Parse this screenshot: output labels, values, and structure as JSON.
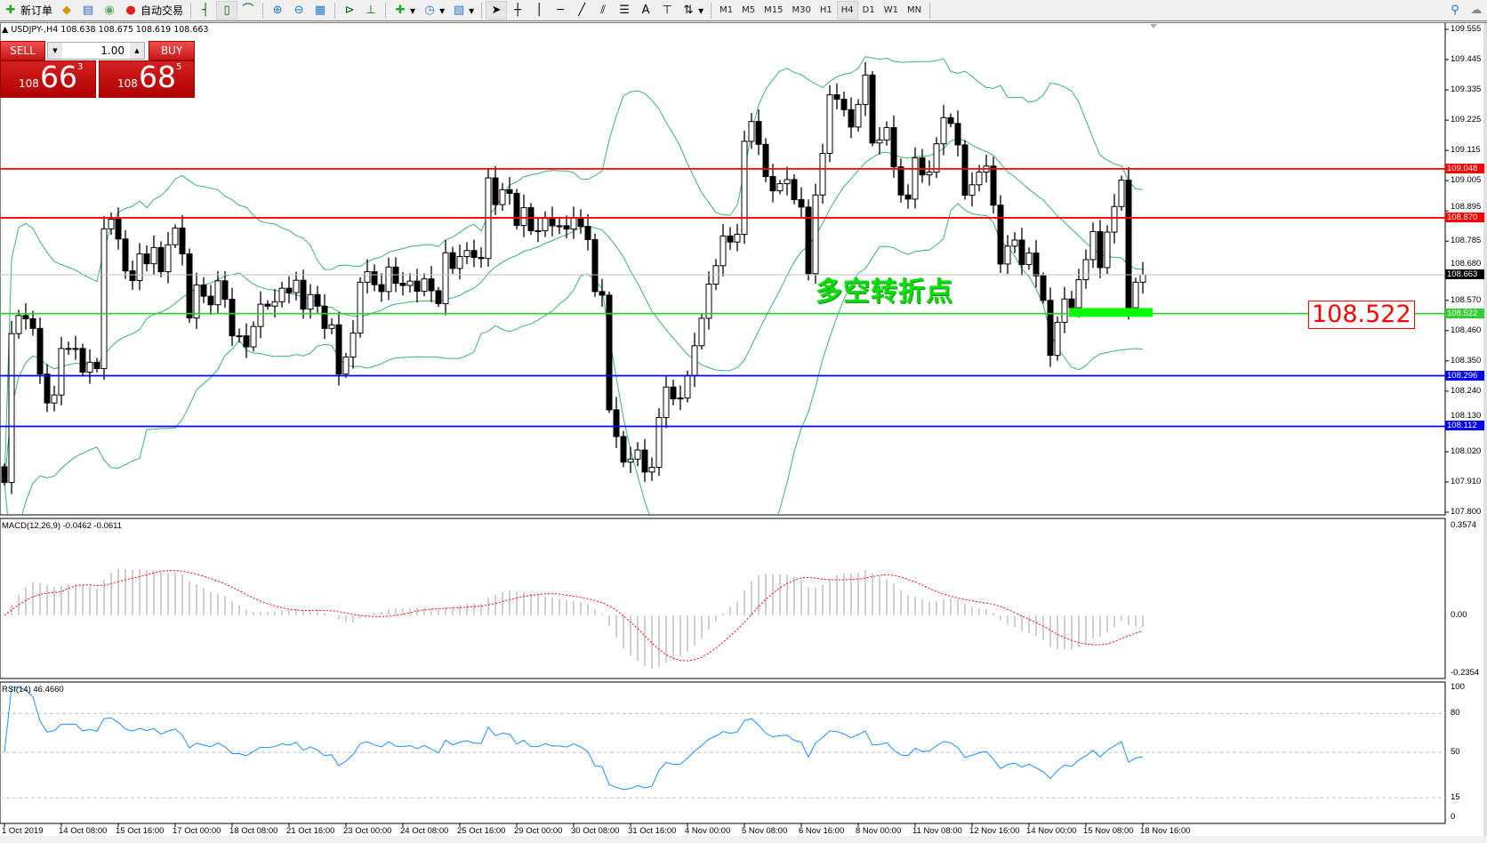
{
  "toolbar": {
    "new_order": "新订单",
    "auto_trading": "自动交易",
    "icons": [
      "new-order-icon",
      "strategy-tester-icon",
      "navigator-icon",
      "signals-icon",
      "auto-trading-icon",
      "bar-chart-icon",
      "candlestick-icon",
      "line-chart-icon",
      "zoom-in-icon",
      "zoom-out-icon",
      "tile-windows-icon",
      "chart-shift-icon",
      "auto-scroll-icon",
      "indicators-icon",
      "periods-icon",
      "templates-icon",
      "cursor-icon",
      "crosshair-icon",
      "vertical-line-icon",
      "horizontal-line-icon",
      "trendline-icon",
      "fibonacci-icon",
      "equidistant-channel-icon",
      "text-icon",
      "text-label-icon",
      "arrows-icon",
      "search-icon",
      "community-icon"
    ],
    "text_tool": "A",
    "periods": [
      "M1",
      "M5",
      "M15",
      "M30",
      "H1",
      "H4",
      "D1",
      "W1",
      "MN"
    ],
    "active_period": "H4"
  },
  "chart": {
    "header": "▲ USDJPY-,H4  108.638 108.675 108.619 108.663",
    "symbol": "USDJPY-",
    "timeframe": "H4"
  },
  "trade_panel": {
    "sell_label": "SELL",
    "buy_label": "BUY",
    "lot": "1.00",
    "sell_price": {
      "small": "108",
      "big": "66",
      "sup": "3"
    },
    "buy_price": {
      "small": "108",
      "big": "68",
      "sup": "5"
    }
  },
  "annotation": {
    "text": "多空转折点",
    "price_label": "108.522",
    "color": "#00e000"
  },
  "levels": [
    {
      "price": "109.048",
      "color": "#ff0000"
    },
    {
      "price": "108.870",
      "color": "#ff0000"
    },
    {
      "price": "108.663",
      "color": "#000000",
      "line_color": "#c0c0c0"
    },
    {
      "price": "108.522",
      "color": "#32cd32"
    },
    {
      "price": "108.296",
      "color": "#0000ff"
    },
    {
      "price": "108.112",
      "color": "#0000ff"
    }
  ],
  "price_axis": [
    "109.555",
    "109.445",
    "109.335",
    "109.225",
    "109.115",
    "109.005",
    "108.895",
    "108.785",
    "108.680",
    "108.570",
    "108.460",
    "108.350",
    "108.240",
    "108.130",
    "108.020",
    "107.910",
    "107.800"
  ],
  "time_axis": [
    "1 Oct 2019",
    "14 Oct 08:00",
    "15 Oct 16:00",
    "17 Oct 00:00",
    "18 Oct 08:00",
    "21 Oct 16:00",
    "23 Oct 00:00",
    "24 Oct 08:00",
    "25 Oct 16:00",
    "29 Oct 00:00",
    "30 Oct 08:00",
    "31 Oct 16:00",
    "4 Nov 00:00",
    "5 Nov 08:00",
    "6 Nov 16:00",
    "8 Nov 00:00",
    "11 Nov 08:00",
    "12 Nov 16:00",
    "14 Nov 00:00",
    "15 Nov 08:00",
    "18 Nov 16:00"
  ],
  "macd": {
    "label": "MACD(12,26,9) -0.0462 -0.0611",
    "axis": [
      "0.3574",
      "0.00",
      "-0.2354"
    ],
    "signal_color": "#ff0000",
    "hist_color": "#c0c0c0"
  },
  "rsi": {
    "label": "RSI(14) 46.4660",
    "axis": [
      "100",
      "80",
      "50",
      "15",
      "0"
    ],
    "levels": [
      80,
      50,
      15
    ],
    "color": "#1e90ff"
  },
  "chart_data": {
    "type": "candlestick",
    "ylim": [
      107.8,
      109.555
    ],
    "first_open": 107.965,
    "closes": [
      107.908,
      108.449,
      108.515,
      108.503,
      108.468,
      108.302,
      108.197,
      108.226,
      108.395,
      108.395,
      108.395,
      108.309,
      108.345,
      108.322,
      108.83,
      108.865,
      108.793,
      108.677,
      108.642,
      108.739,
      108.703,
      108.762,
      108.674,
      108.772,
      108.833,
      108.739,
      108.506,
      108.626,
      108.585,
      108.554,
      108.641,
      108.574,
      108.441,
      108.441,
      108.401,
      108.475,
      108.556,
      108.549,
      108.565,
      108.614,
      108.598,
      108.643,
      108.538,
      108.591,
      108.549,
      108.468,
      108.481,
      108.302,
      108.364,
      108.451,
      108.636,
      108.674,
      108.627,
      108.602,
      108.691,
      108.632,
      108.624,
      108.64,
      108.603,
      108.648,
      108.605,
      108.558,
      108.743,
      108.686,
      108.729,
      108.751,
      108.726,
      108.722,
      109.015,
      108.918,
      108.972,
      108.959,
      108.842,
      108.907,
      108.823,
      108.823,
      108.868,
      108.841,
      108.841,
      108.829,
      108.871,
      108.839,
      108.791,
      108.602,
      108.589,
      108.172,
      108.075,
      107.982,
      107.993,
      108.026,
      107.946,
      107.963,
      108.144,
      108.255,
      108.212,
      108.215,
      108.297,
      108.405,
      108.505,
      108.629,
      108.696,
      108.804,
      108.782,
      108.81,
      109.148,
      109.22,
      109.137,
      109.02,
      108.968,
      108.994,
      109.009,
      108.936,
      108.909,
      108.667,
      108.953,
      109.104,
      109.317,
      109.301,
      109.263,
      109.2,
      109.282,
      109.389,
      109.142,
      109.153,
      109.198,
      109.055,
      108.953,
      108.938,
      109.088,
      109.026,
      109.036,
      109.139,
      109.234,
      109.213,
      109.135,
      108.952,
      108.99,
      109.036,
      109.058,
      108.916,
      108.702,
      108.767,
      108.789,
      108.7,
      108.742,
      108.659,
      108.57,
      108.37,
      108.49,
      108.575,
      108.543,
      108.645,
      108.718,
      108.82,
      108.689,
      108.818,
      108.911,
      109.007,
      108.543,
      108.636,
      108.663
    ],
    "indicators": [
      "Bollinger Bands(20,2)",
      "MACD(12,26,9)",
      "RSI(14)"
    ],
    "band_color": "#3cb371"
  }
}
